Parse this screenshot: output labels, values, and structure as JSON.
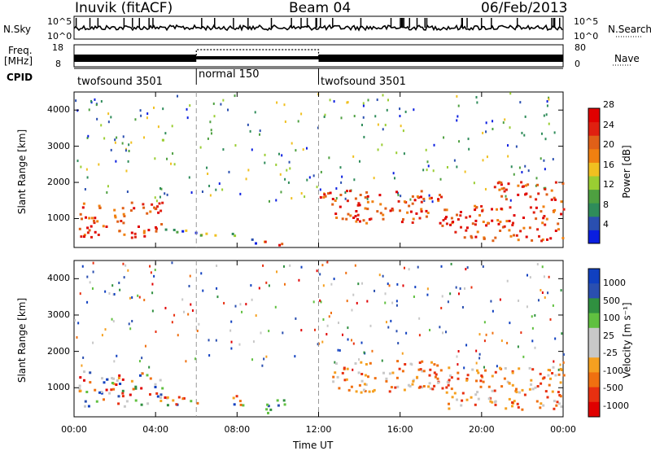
{
  "header": {
    "station": "Inuvik (fitACF)",
    "beam": "Beam 04",
    "date": "06/Feb/2013"
  },
  "side_labels": {
    "nsky": "N.Sky",
    "freq_line1": "Freq.",
    "freq_line2": "[MHz]",
    "cpid": "CPID",
    "nsearch": "N.Search",
    "nave": "Nave"
  },
  "colors": {
    "power": [
      "#0a1ee0",
      "#2a4fb0",
      "#2f8c5a",
      "#4ea040",
      "#9acd32",
      "#f0c020",
      "#f08010",
      "#e06018",
      "#e02010",
      "#e00000"
    ],
    "velocity": [
      "#e00000",
      "#e83010",
      "#f07010",
      "#f5a020",
      "#c8c8c8",
      "#c8c8c8",
      "#60c040",
      "#309040",
      "#2a4fb0",
      "#1040c0"
    ]
  },
  "chart_data": [
    {
      "type": "line",
      "name": "sky-noise",
      "yticks_left": [
        "10^5",
        "10^0"
      ],
      "yticks_right": [
        "10^5",
        "10^0"
      ]
    },
    {
      "type": "line",
      "name": "frequency-nave",
      "yticks_left": [
        "18",
        "8"
      ],
      "yticks_right": [
        "80",
        "0"
      ],
      "cpid_segments": [
        {
          "label": "twofsound 3501",
          "start_hour": 0,
          "end_hour": 6
        },
        {
          "label": "normal 150",
          "start_hour": 6,
          "end_hour": 12
        },
        {
          "label": "twofsound 3501",
          "start_hour": 12,
          "end_hour": 24
        }
      ]
    },
    {
      "type": "heatmap",
      "name": "power",
      "ylabel": "Slant Range [km]",
      "yticks": [
        "1000",
        "2000",
        "3000",
        "4000"
      ],
      "ylim": [
        200,
        4500
      ],
      "xlim_hours": [
        0,
        24
      ],
      "colorbar_label": "Power [dB]",
      "colorbar_ticks": [
        "4",
        "8",
        "12",
        "16",
        "20",
        "24",
        "28"
      ],
      "bands": [
        {
          "t0": 0.2,
          "t1": 4.3,
          "r0": 500,
          "r1": 1500,
          "level": "high"
        },
        {
          "t0": 4.3,
          "t1": 6.0,
          "r0": 600,
          "r1": 800,
          "level": "mid"
        },
        {
          "t0": 6.0,
          "t1": 8.5,
          "r0": 550,
          "r1": 700,
          "level": "mid"
        },
        {
          "t0": 8.5,
          "t1": 9.5,
          "r0": 250,
          "r1": 450,
          "level": "mid"
        },
        {
          "t0": 9.3,
          "t1": 10.3,
          "r0": 250,
          "r1": 450,
          "level": "high"
        },
        {
          "t0": 12.0,
          "t1": 12.4,
          "r0": 1200,
          "r1": 1800,
          "level": "high"
        },
        {
          "t0": 12.4,
          "t1": 18.0,
          "r0": 900,
          "r1": 1800,
          "level": "high"
        },
        {
          "t0": 18.0,
          "t1": 24.0,
          "r0": 400,
          "r1": 1400,
          "level": "high"
        },
        {
          "t0": 20.5,
          "t1": 24.0,
          "r0": 1500,
          "r1": 2100,
          "level": "high"
        }
      ]
    },
    {
      "type": "heatmap",
      "name": "velocity",
      "ylabel": "Slant Range [km]",
      "yticks": [
        "1000",
        "2000",
        "3000",
        "4000"
      ],
      "ylim": [
        200,
        4500
      ],
      "xlim_hours": [
        0,
        24
      ],
      "xlabel": "Time UT",
      "xticks": [
        "00:00",
        "04:00",
        "08:00",
        "12:00",
        "16:00",
        "20:00",
        "00:00"
      ],
      "colorbar_label": "Velocity [m s⁻¹]",
      "colorbar_ticks": [
        "1000",
        "500",
        "100",
        "25",
        "-25",
        "-100",
        "-500",
        "-1000"
      ],
      "bands": [
        {
          "t0": 0.2,
          "t1": 4.3,
          "r0": 500,
          "r1": 1500,
          "level": "mixed-green"
        },
        {
          "t0": 4.3,
          "t1": 8.5,
          "r0": 550,
          "r1": 800,
          "level": "mixed-green"
        },
        {
          "t0": 9.3,
          "t1": 10.3,
          "r0": 250,
          "r1": 800,
          "level": "green"
        },
        {
          "t0": 12.4,
          "t1": 18.0,
          "r0": 900,
          "r1": 1800,
          "level": "orange"
        },
        {
          "t0": 18.0,
          "t1": 24.0,
          "r0": 400,
          "r1": 1600,
          "level": "orange"
        }
      ]
    }
  ]
}
